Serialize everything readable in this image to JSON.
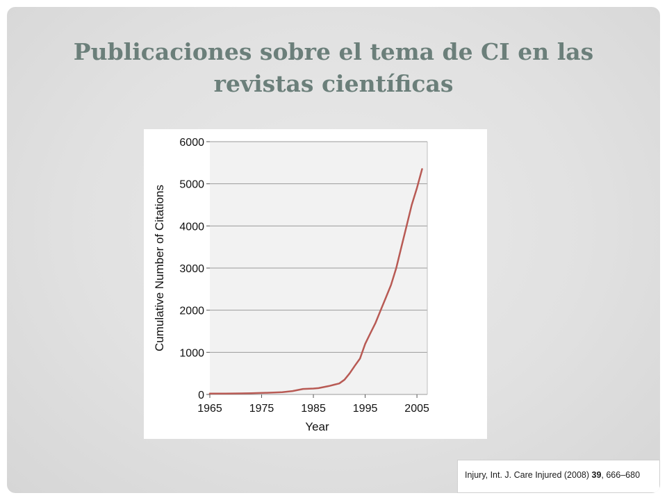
{
  "slide": {
    "title_line1": "Publicaciones sobre el tema de CI en las",
    "title_line2": "revistas científicas"
  },
  "reference": {
    "prefix": "Injury, Int. J. Care Injured (2008) ",
    "volume": "39",
    "pages": ", 666–680"
  },
  "colors": {
    "title": "#6b7f7a",
    "line": "#b85a54",
    "plot_background": "#f2f2f2",
    "grid": "#9a9a9a"
  },
  "chart_data": {
    "type": "line",
    "title": "",
    "xlabel": "Year",
    "ylabel": "Cumulative Number of Citations",
    "xlim": [
      1965,
      2007
    ],
    "ylim": [
      0,
      6000
    ],
    "xticks": [
      1965,
      1975,
      1985,
      1995,
      2005
    ],
    "yticks": [
      0,
      1000,
      2000,
      3000,
      4000,
      5000,
      6000
    ],
    "grid": "horizontal",
    "legend": "none",
    "series": [
      {
        "x": [
          1965,
          1968,
          1971,
          1973,
          1976,
          1979,
          1981,
          1983,
          1985,
          1986,
          1988,
          1989,
          1990,
          1991,
          1992,
          1993,
          1994,
          1995,
          1996,
          1997,
          1998,
          1999,
          2000,
          2001,
          2002,
          2003,
          2004,
          2005,
          2006
        ],
        "y": [
          20,
          20,
          25,
          30,
          40,
          55,
          80,
          130,
          140,
          150,
          200,
          230,
          260,
          350,
          500,
          680,
          850,
          1200,
          1450,
          1700,
          2000,
          2300,
          2600,
          3000,
          3500,
          4000,
          4500,
          4900,
          5350
        ]
      }
    ]
  }
}
